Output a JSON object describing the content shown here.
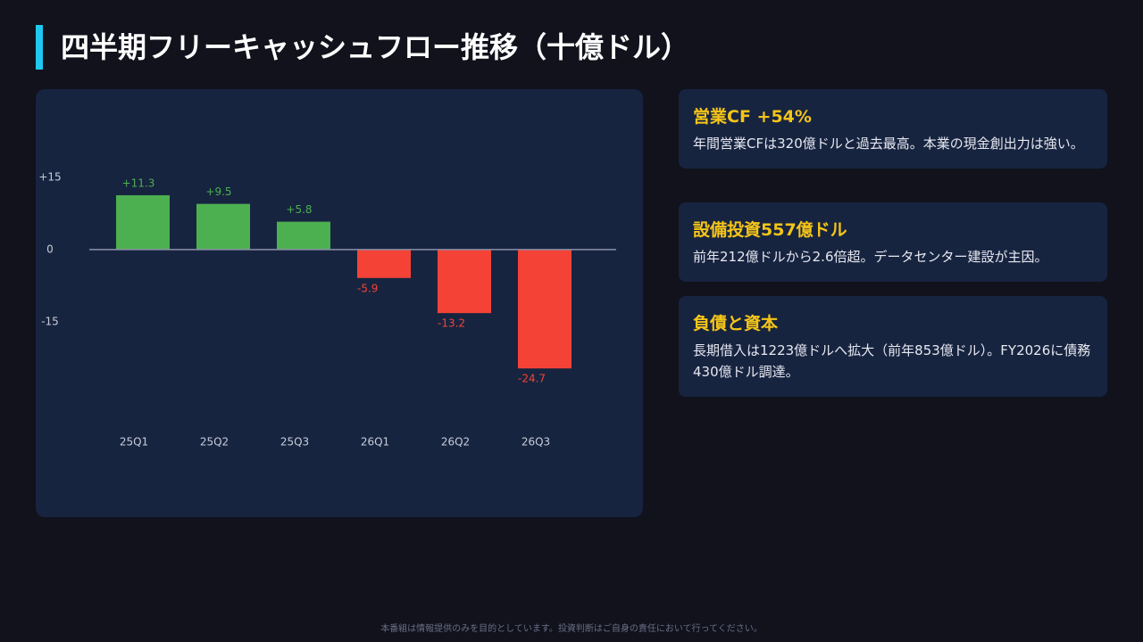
{
  "title": "四半期フリーキャッシュフロー推移（十億ドル）",
  "chart_data": {
    "type": "bar",
    "categories": [
      "25Q1",
      "25Q2",
      "25Q3",
      "26Q1",
      "26Q2",
      "26Q3"
    ],
    "values": [
      11.3,
      9.5,
      5.8,
      -5.9,
      -13.2,
      -24.7
    ],
    "value_labels": [
      "+11.3",
      "+9.5",
      "+5.8",
      "-5.9",
      "-13.2",
      "-24.7"
    ],
    "positive_color": "#4caf50",
    "negative_color": "#f44336",
    "ylim": [
      -28,
      20
    ],
    "yticks": [
      {
        "value": 15,
        "label": "+15"
      },
      0,
      -15
    ],
    "grid": false
  },
  "cards": [
    {
      "title": "営業CF +54%",
      "body": "年間営業CFは320億ドルと過去最高。本業の現金創出力は強い。"
    },
    {
      "title": "設備投資557億ドル",
      "body": "前年212億ドルから2.6倍超。データセンター建設が主因。"
    },
    {
      "title": "負債と資本",
      "body": "長期借入は1223億ドルへ拡大（前年853億ドル）。FY2026に債務430億ドル調達。"
    }
  ],
  "disclaimer": "本番組は情報提供のみを目的としています。投資判断はご自身の責任において行ってください。"
}
